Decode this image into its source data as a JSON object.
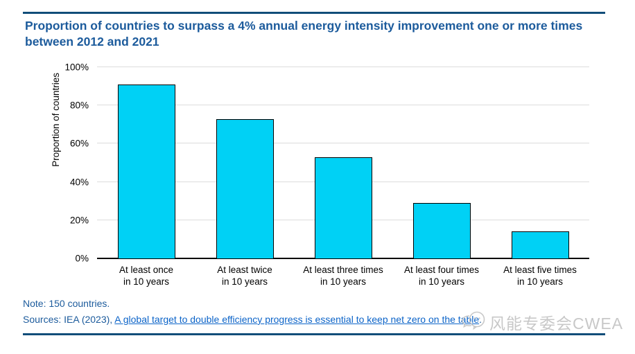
{
  "header": {
    "title": "Proportion of countries to surpass a 4% annual energy intensity improvement one or more times between 2012 and 2021"
  },
  "chart_data": {
    "type": "bar",
    "title": "Proportion of countries to surpass a 4% annual energy intensity improvement one or more times between 2012 and 2021",
    "categories": [
      "At least once\nin 10 years",
      "At least twice\nin 10 years",
      "At least three times\nin 10 years",
      "At least four times\nin 10 years",
      "At least five times\nin 10 years"
    ],
    "values": [
      91,
      73,
      53,
      29,
      14
    ],
    "xlabel": "",
    "ylabel": "Proportion of countries",
    "ylim": [
      0,
      100
    ],
    "yticks": [
      0,
      20,
      40,
      60,
      80,
      100
    ],
    "ytick_labels": [
      "0%",
      "20%",
      "40%",
      "60%",
      "80%",
      "100%"
    ],
    "grid": "horizontal",
    "legend": "none",
    "bar_color": "#00D1F5",
    "bar_border_color": "#000000"
  },
  "footer": {
    "note": "Note: 150 countries.",
    "sources_prefix": "Sources: IEA (2023), ",
    "source_link_text": "A global target to double efficiency progress is essential to keep net zero on the table",
    "sources_suffix": "."
  },
  "watermark": {
    "text": "风能专委会CWEA",
    "icon": "chat-bubbles-icon"
  },
  "colors": {
    "title_blue": "#1C5B9C",
    "rule_navy": "#114D79",
    "link_blue": "#0B63C8",
    "bar_cyan": "#00D1F5",
    "gridline_gray": "#DCDCDC",
    "watermark_gray": "#C8C8C8"
  }
}
